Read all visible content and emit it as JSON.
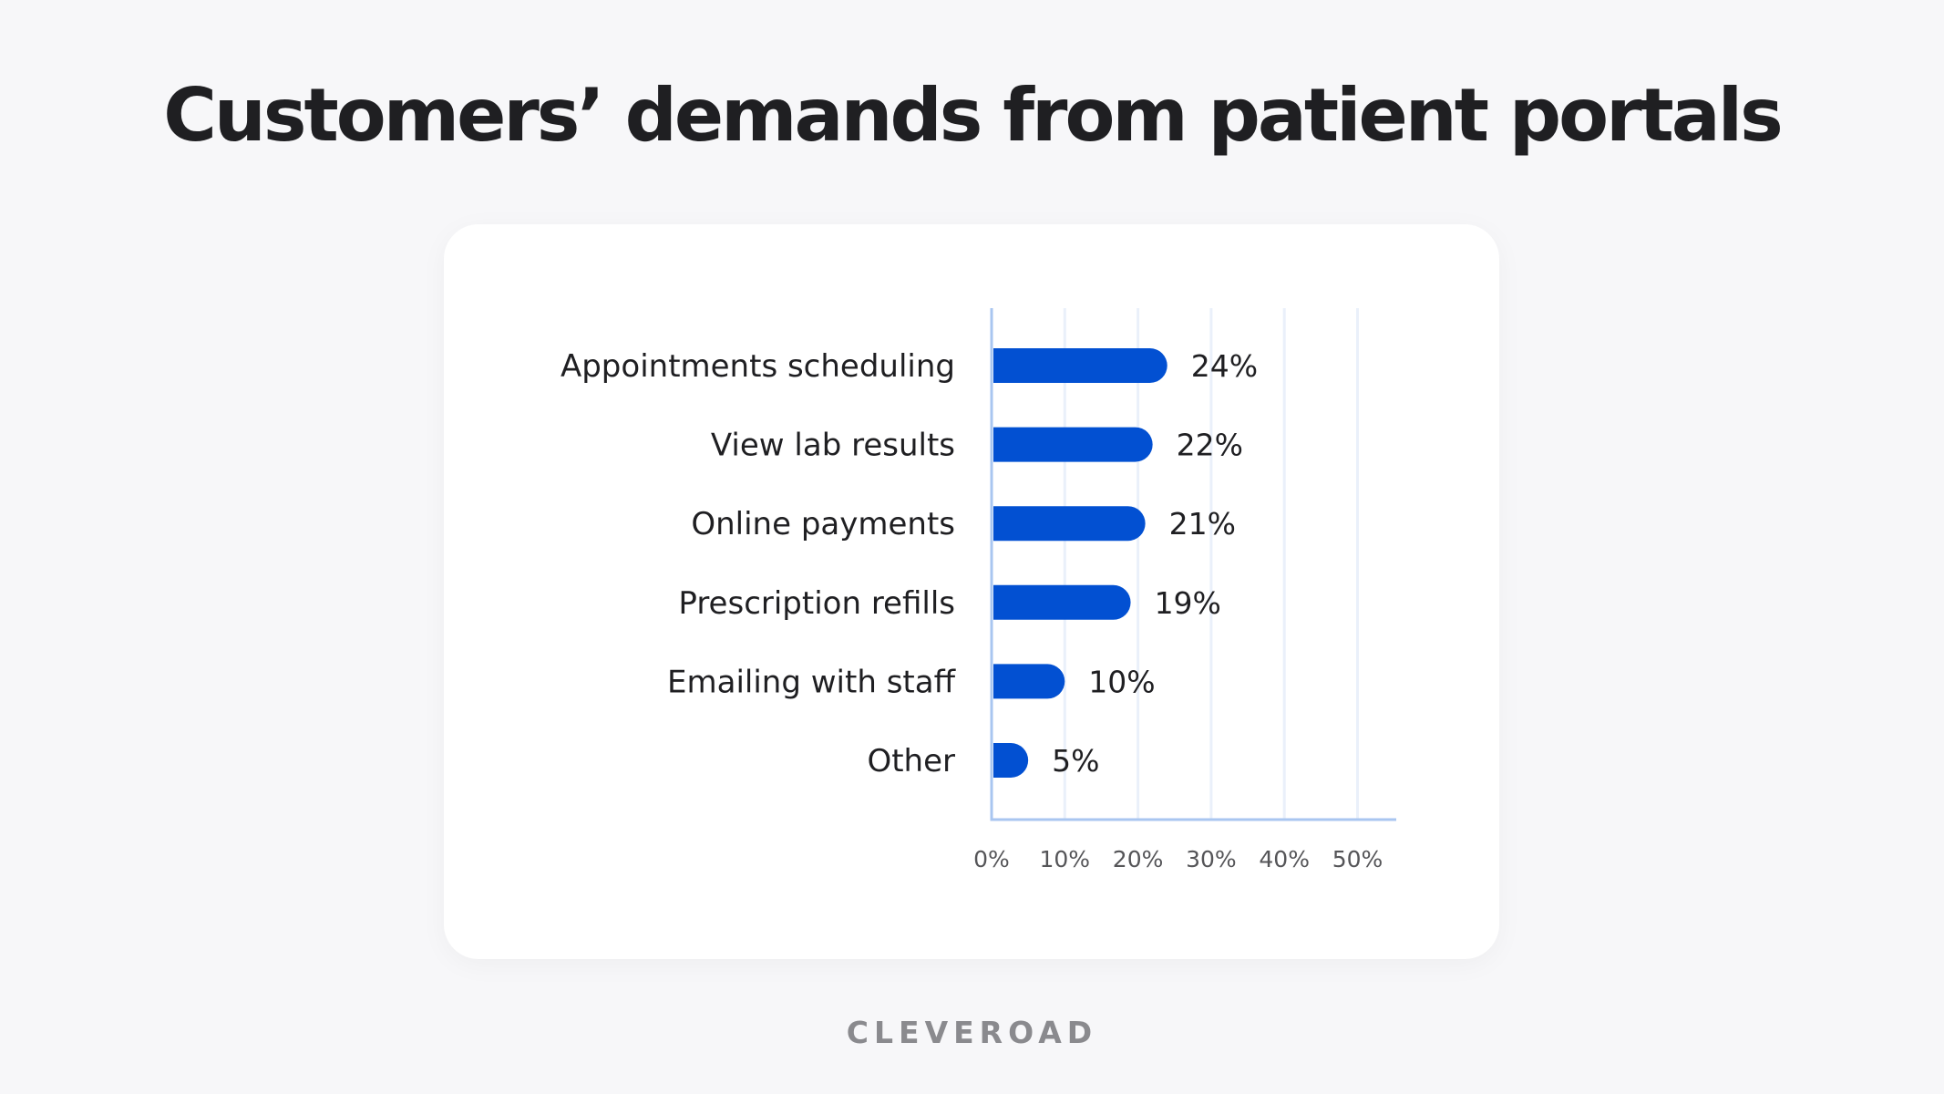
{
  "title": "Customers’ demands from patient portals",
  "brand": "CLEVEROAD",
  "colors": {
    "bar": "#0250d2",
    "axis": "#a9c6f0",
    "grid": "#eaf0fa",
    "background": "#f7f7f9",
    "card": "#ffffff"
  },
  "chart_data": {
    "type": "bar",
    "orientation": "horizontal",
    "title": "Customers’ demands from patient portals",
    "categories": [
      "Appointments scheduling",
      "View lab results",
      "Online payments",
      "Prescription refills",
      "Emailing with staff",
      "Other"
    ],
    "values": [
      24,
      22,
      21,
      19,
      10,
      5
    ],
    "value_labels": [
      "24%",
      "22%",
      "21%",
      "19%",
      "10%",
      "5%"
    ],
    "xticks": [
      0,
      10,
      20,
      30,
      40,
      50
    ],
    "xtick_labels": [
      "0%",
      "10%",
      "20%",
      "30%",
      "40%",
      "50%"
    ],
    "xlim": [
      0,
      55
    ],
    "xlabel": "",
    "ylabel": "",
    "grid": true,
    "legend": "none"
  }
}
